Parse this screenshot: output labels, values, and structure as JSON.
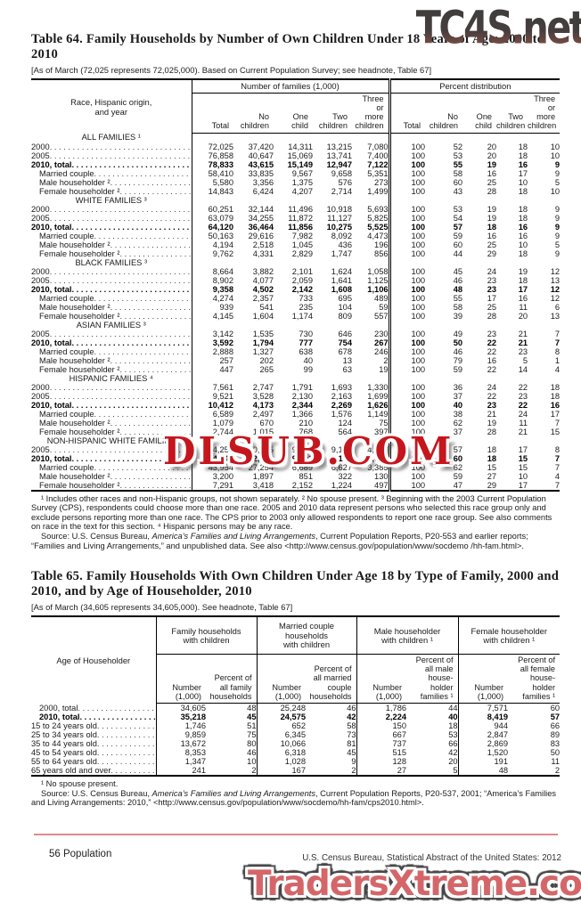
{
  "watermarks": {
    "top": "TC4S.net",
    "middle": "DLSUB.COM",
    "bottom": "TradersXtreme.com",
    "middle_color": "#c5161d",
    "bottom_color": "#d4666a"
  },
  "table64": {
    "title": "Table 64. Family Households by Number of Own Children Under 18 Years of Age: 2000 to 2010",
    "headnote": "[As of March (72,025 represents 72,025,000). Based on Current Population Survey; see headnote, Table 67]",
    "stub_header": "Race, Hispanic origin,\nand year",
    "col_group_number": "Number of families (1,000)",
    "col_group_percent": "Percent distribution",
    "sub_headers": [
      "Total",
      "No\nchildren",
      "One\nchild",
      "Two\nchildren",
      "Three\nor\nmore\nchildren"
    ],
    "sections": [
      {
        "label": "ALL FAMILIES ¹",
        "rows": [
          {
            "label": "2000",
            "indent": 0,
            "bold": false,
            "values": [
              "72,025",
              "37,420",
              "14,311",
              "13,215",
              "7,080",
              "100",
              "52",
              "20",
              "18",
              "10"
            ]
          },
          {
            "label": "2005",
            "indent": 0,
            "bold": false,
            "values": [
              "76,858",
              "40,647",
              "15,069",
              "13,741",
              "7,400",
              "100",
              "53",
              "20",
              "18",
              "10"
            ]
          },
          {
            "label": "2010, total",
            "indent": 0,
            "bold": true,
            "values": [
              "78,833",
              "43,615",
              "15,149",
              "12,947",
              "7,122",
              "100",
              "55",
              "19",
              "16",
              "9"
            ]
          },
          {
            "label": "Married couple",
            "indent": 1,
            "bold": false,
            "values": [
              "58,410",
              "33,835",
              "9,567",
              "9,658",
              "5,351",
              "100",
              "58",
              "16",
              "17",
              "9"
            ]
          },
          {
            "label": "Male householder ²",
            "indent": 1,
            "bold": false,
            "values": [
              "5,580",
              "3,356",
              "1,375",
              "576",
              "273",
              "100",
              "60",
              "25",
              "10",
              "5"
            ]
          },
          {
            "label": "Female householder ²",
            "indent": 1,
            "bold": false,
            "values": [
              "14,843",
              "6,424",
              "4,207",
              "2,714",
              "1,499",
              "100",
              "43",
              "28",
              "18",
              "10"
            ]
          }
        ]
      },
      {
        "label": "WHITE FAMILIES ³",
        "rows": [
          {
            "label": "2000",
            "indent": 0,
            "bold": false,
            "values": [
              "60,251",
              "32,144",
              "11,496",
              "10,918",
              "5,693",
              "100",
              "53",
              "19",
              "18",
              "9"
            ]
          },
          {
            "label": "2005",
            "indent": 0,
            "bold": false,
            "values": [
              "63,079",
              "34,255",
              "11,872",
              "11,127",
              "5,825",
              "100",
              "54",
              "19",
              "18",
              "9"
            ]
          },
          {
            "label": "2010, total",
            "indent": 0,
            "bold": true,
            "values": [
              "64,120",
              "36,464",
              "11,856",
              "10,275",
              "5,525",
              "100",
              "57",
              "18",
              "16",
              "9"
            ]
          },
          {
            "label": "Married couple",
            "indent": 1,
            "bold": false,
            "values": [
              "50,163",
              "29,616",
              "7,982",
              "8,092",
              "4,473",
              "100",
              "59",
              "16",
              "16",
              "9"
            ]
          },
          {
            "label": "Male householder ²",
            "indent": 1,
            "bold": false,
            "values": [
              "4,194",
              "2,518",
              "1,045",
              "436",
              "196",
              "100",
              "60",
              "25",
              "10",
              "5"
            ]
          },
          {
            "label": "Female householder ²",
            "indent": 1,
            "bold": false,
            "values": [
              "9,762",
              "4,331",
              "2,829",
              "1,747",
              "856",
              "100",
              "44",
              "29",
              "18",
              "9"
            ]
          }
        ]
      },
      {
        "label": "BLACK FAMILIES ³",
        "rows": [
          {
            "label": "2000",
            "indent": 0,
            "bold": false,
            "values": [
              "8,664",
              "3,882",
              "2,101",
              "1,624",
              "1,058",
              "100",
              "45",
              "24",
              "19",
              "12"
            ]
          },
          {
            "label": "2005",
            "indent": 0,
            "bold": false,
            "values": [
              "8,902",
              "4,077",
              "2,059",
              "1,641",
              "1,125",
              "100",
              "46",
              "23",
              "18",
              "13"
            ]
          },
          {
            "label": "2010, total",
            "indent": 0,
            "bold": true,
            "values": [
              "9,358",
              "4,502",
              "2,142",
              "1,608",
              "1,106",
              "100",
              "48",
              "23",
              "17",
              "12"
            ]
          },
          {
            "label": "Married couple",
            "indent": 1,
            "bold": false,
            "values": [
              "4,274",
              "2,357",
              "733",
              "695",
              "489",
              "100",
              "55",
              "17",
              "16",
              "12"
            ]
          },
          {
            "label": "Male householder ²",
            "indent": 1,
            "bold": false,
            "values": [
              "939",
              "541",
              "235",
              "104",
              "59",
              "100",
              "58",
              "25",
              "11",
              "6"
            ]
          },
          {
            "label": "Female householder ²",
            "indent": 1,
            "bold": false,
            "values": [
              "4,145",
              "1,604",
              "1,174",
              "809",
              "557",
              "100",
              "39",
              "28",
              "20",
              "13"
            ]
          }
        ]
      },
      {
        "label": "ASIAN FAMILIES ³",
        "rows": [
          {
            "label": "2005",
            "indent": 0,
            "bold": false,
            "values": [
              "3,142",
              "1,535",
              "730",
              "646",
              "230",
              "100",
              "49",
              "23",
              "21",
              "7"
            ]
          },
          {
            "label": "2010, total",
            "indent": 0,
            "bold": true,
            "values": [
              "3,592",
              "1,794",
              "777",
              "754",
              "267",
              "100",
              "50",
              "22",
              "21",
              "7"
            ]
          },
          {
            "label": "Married couple",
            "indent": 1,
            "bold": false,
            "values": [
              "2,888",
              "1,327",
              "638",
              "678",
              "246",
              "100",
              "46",
              "22",
              "23",
              "8"
            ]
          },
          {
            "label": "Male householder ²",
            "indent": 1,
            "bold": false,
            "values": [
              "257",
              "202",
              "40",
              "13",
              "2",
              "100",
              "79",
              "16",
              "5",
              "1"
            ]
          },
          {
            "label": "Female householder ²",
            "indent": 1,
            "bold": false,
            "values": [
              "447",
              "265",
              "99",
              "63",
              "19",
              "100",
              "59",
              "22",
              "14",
              "4"
            ]
          }
        ]
      },
      {
        "label": "HISPANIC FAMILIES ⁴",
        "rows": [
          {
            "label": "2000",
            "indent": 0,
            "bold": false,
            "values": [
              "7,561",
              "2,747",
              "1,791",
              "1,693",
              "1,330",
              "100",
              "36",
              "24",
              "22",
              "18"
            ]
          },
          {
            "label": "2005",
            "indent": 0,
            "bold": false,
            "values": [
              "9,521",
              "3,528",
              "2,130",
              "2,163",
              "1,699",
              "100",
              "37",
              "22",
              "23",
              "18"
            ]
          },
          {
            "label": "2010, total",
            "indent": 0,
            "bold": true,
            "values": [
              "10,412",
              "4,173",
              "2,344",
              "2,269",
              "1,626",
              "100",
              "40",
              "23",
              "22",
              "16"
            ]
          },
          {
            "label": "Married couple",
            "indent": 1,
            "bold": false,
            "values": [
              "6,589",
              "2,497",
              "1,366",
              "1,576",
              "1,149",
              "100",
              "38",
              "21",
              "24",
              "17"
            ]
          },
          {
            "label": "Male householder ²",
            "indent": 1,
            "bold": false,
            "values": [
              "1,079",
              "670",
              "210",
              "124",
              "75",
              "100",
              "62",
              "19",
              "11",
              "7"
            ]
          },
          {
            "label": "Female householder ²",
            "indent": 1,
            "bold": false,
            "values": [
              "2,744",
              "1,015",
              "768",
              "564",
              "397",
              "100",
              "37",
              "28",
              "21",
              "15"
            ]
          }
        ]
      },
      {
        "label": "NON-HISPANIC WHITE FAMILIES",
        "rows": [
          {
            "label": "2005",
            "indent": 0,
            "bold": false,
            "values": [
              "54,257",
              "30,965",
              "9,924",
              "9,151",
              "4,217",
              "100",
              "57",
              "18",
              "17",
              "8"
            ]
          },
          {
            "label": "2010, total",
            "indent": 0,
            "bold": true,
            "values": [
              "54,445",
              "32,569",
              "9,691",
              "8,173",
              "4,012",
              "100",
              "60",
              "18",
              "15",
              "7"
            ]
          },
          {
            "label": "Married couple",
            "indent": 1,
            "bold": false,
            "values": [
              "43,954",
              "27,254",
              "6,689",
              "6,627",
              "3,385",
              "100",
              "62",
              "15",
              "15",
              "7"
            ]
          },
          {
            "label": "Male householder ²",
            "indent": 1,
            "bold": false,
            "values": [
              "3,200",
              "1,897",
              "851",
              "322",
              "130",
              "100",
              "59",
              "27",
              "10",
              "4"
            ]
          },
          {
            "label": "Female householder ²",
            "indent": 1,
            "bold": false,
            "values": [
              "7,291",
              "3,418",
              "2,152",
              "1,224",
              "497",
              "100",
              "47",
              "29",
              "17",
              "7"
            ]
          }
        ]
      }
    ],
    "footnote": "¹ Includes other races and non-Hispanic groups, not shown separately. ² No spouse present. ³ Beginning with the 2003 Current Population Survey (CPS), respondents could choose more than one race. 2005 and 2010 data represent persons who selected this race group only and exclude persons reporting more than one race. The CPS prior to 2003 only allowed respondents to report one race group. See also comments on race in the text for this section. ⁴ Hispanic persons may be any race.",
    "source": {
      "prefix": "Source: U.S. Census Bureau, ",
      "italic": "America’s Families and Living Arrangements",
      "suffix": ", Current Population Reports, P20-553 and earlier reports; “Families and Living Arrangements,” and unpublished data. See also <http://www.census.gov/population/www/socdemo /hh-fam.html>."
    }
  },
  "table65": {
    "title": "Table 65. Family Households With Own Children Under Age 18 by Type of Family, 2000 and 2010, and by Age of Householder, 2010",
    "headnote": "[As of March (34,605 represents 34,605,000). See headnote, Table 67]",
    "stub_header": "Age of Householder",
    "groups": [
      {
        "label": "Family households\nwith children",
        "sub": [
          "Number\n(1,000)",
          "Percent of\nall family\nhouseholds"
        ]
      },
      {
        "label": "Married couple\nhouseholds\nwith children",
        "sub": [
          "Number\n(1,000)",
          "Percent of\nall married\ncouple\nhouseholds"
        ]
      },
      {
        "label": "Male householder\nwith children ¹",
        "sub": [
          "Number\n(1,000)",
          "Percent of\nall male\nhouse-\nholder\nfamilies ¹"
        ]
      },
      {
        "label": "Female householder\nwith children ¹",
        "sub": [
          "Number\n(1,000)",
          "Percent of\nall female\nhouse-\nholder\nfamilies ¹"
        ]
      }
    ],
    "rows": [
      {
        "label": "2000, total",
        "indent": 1,
        "bold": false,
        "values": [
          "34,605",
          "48",
          "25,248",
          "46",
          "1,786",
          "44",
          "7,571",
          "60"
        ]
      },
      {
        "label": "2010, total",
        "indent": 1,
        "bold": true,
        "values": [
          "35,218",
          "45",
          "24,575",
          "42",
          "2,224",
          "40",
          "8,419",
          "57"
        ]
      },
      {
        "label": "15 to 24 years old",
        "indent": 0,
        "bold": false,
        "values": [
          "1,746",
          "51",
          "652",
          "58",
          "150",
          "18",
          "944",
          "66"
        ]
      },
      {
        "label": "25 to 34 years old",
        "indent": 0,
        "bold": false,
        "values": [
          "9,859",
          "75",
          "6,345",
          "73",
          "667",
          "53",
          "2,847",
          "89"
        ]
      },
      {
        "label": "35 to 44 years old",
        "indent": 0,
        "bold": false,
        "values": [
          "13,672",
          "80",
          "10,066",
          "81",
          "737",
          "66",
          "2,869",
          "83"
        ]
      },
      {
        "label": "45 to 54 years old",
        "indent": 0,
        "bold": false,
        "values": [
          "8,353",
          "46",
          "6,318",
          "45",
          "515",
          "42",
          "1,520",
          "50"
        ]
      },
      {
        "label": "55 to 64 years old",
        "indent": 0,
        "bold": false,
        "values": [
          "1,347",
          "10",
          "1,028",
          "9",
          "128",
          "20",
          "191",
          "11"
        ]
      },
      {
        "label": "65 years old and over",
        "indent": 0,
        "bold": false,
        "values": [
          "241",
          "2",
          "167",
          "2",
          "27",
          "5",
          "48",
          "2"
        ]
      }
    ],
    "footnote": "¹ No spouse present.",
    "source": {
      "prefix": "Source: U.S. Census Bureau, ",
      "italic": "America’s Families and Living Arrangements",
      "suffix": ", Current Population Reports, P20-537, 2001; “America’s Families and Living Arrangements: 2010,” <http://www.census.gov/population/www/socdemo/hh-fam/cps2010.html>."
    }
  },
  "page_footer": {
    "left": "56  Population",
    "right": "U.S. Census Bureau, Statistical Abstract of the United States: 2012"
  }
}
